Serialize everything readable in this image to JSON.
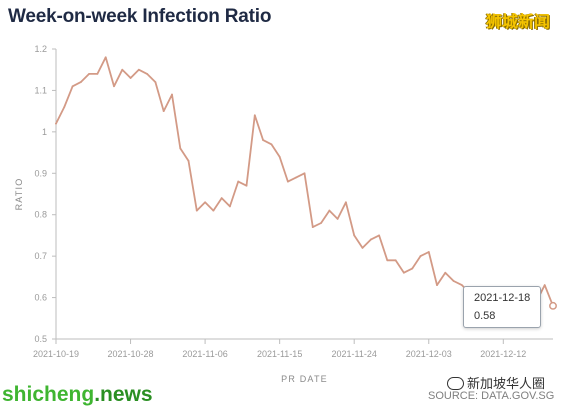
{
  "header": {
    "title": "Week-on-week Infection Ratio"
  },
  "watermarks": {
    "top_right": "狮城新闻",
    "bottom_left_name": "shicheng",
    "bottom_left_tld": ".news",
    "bottom_right": "新加坡华人圈"
  },
  "source": "SOURCE: DATA.GOV.SG",
  "colors": {
    "line": "#d39a86",
    "axis": "#bdbdbd",
    "title": "#1f2a44"
  },
  "tooltip": {
    "date": "2021-12-18",
    "value": "0.58"
  },
  "chart_data": {
    "type": "line",
    "title": "Week-on-week Infection Ratio",
    "xlabel": "PR DATE",
    "ylabel": "RATIO",
    "ylim": [
      0.5,
      1.2
    ],
    "yticks": [
      "0.5",
      "0.6",
      "0.7",
      "0.8",
      "0.9",
      "1",
      "1.1",
      "1.2"
    ],
    "xticks": [
      "2021-10-19",
      "2021-10-28",
      "2021-11-06",
      "2021-11-15",
      "2021-11-24",
      "2021-12-03",
      "2021-12-12"
    ],
    "grid": false,
    "legend": "none",
    "x": [
      "2021-10-19",
      "2021-10-20",
      "2021-10-21",
      "2021-10-22",
      "2021-10-23",
      "2021-10-24",
      "2021-10-25",
      "2021-10-26",
      "2021-10-27",
      "2021-10-28",
      "2021-10-29",
      "2021-10-30",
      "2021-10-31",
      "2021-11-01",
      "2021-11-02",
      "2021-11-03",
      "2021-11-04",
      "2021-11-05",
      "2021-11-06",
      "2021-11-07",
      "2021-11-08",
      "2021-11-09",
      "2021-11-10",
      "2021-11-11",
      "2021-11-12",
      "2021-11-13",
      "2021-11-14",
      "2021-11-15",
      "2021-11-16",
      "2021-11-17",
      "2021-11-18",
      "2021-11-19",
      "2021-11-20",
      "2021-11-21",
      "2021-11-22",
      "2021-11-23",
      "2021-11-24",
      "2021-11-25",
      "2021-11-26",
      "2021-11-27",
      "2021-11-28",
      "2021-11-29",
      "2021-11-30",
      "2021-12-01",
      "2021-12-02",
      "2021-12-03",
      "2021-12-04",
      "2021-12-05",
      "2021-12-06",
      "2021-12-07",
      "2021-12-08",
      "2021-12-09",
      "2021-12-10",
      "2021-12-11",
      "2021-12-12",
      "2021-12-13",
      "2021-12-14",
      "2021-12-15",
      "2021-12-16",
      "2021-12-17",
      "2021-12-18"
    ],
    "series": [
      {
        "values": [
          1.02,
          1.06,
          1.11,
          1.12,
          1.14,
          1.14,
          1.18,
          1.11,
          1.15,
          1.13,
          1.15,
          1.14,
          1.12,
          1.05,
          1.09,
          0.96,
          0.93,
          0.81,
          0.83,
          0.81,
          0.84,
          0.82,
          0.88,
          0.87,
          1.04,
          0.98,
          0.97,
          0.94,
          0.88,
          0.89,
          0.9,
          0.77,
          0.78,
          0.81,
          0.79,
          0.83,
          0.75,
          0.72,
          0.74,
          0.75,
          0.69,
          0.69,
          0.66,
          0.67,
          0.7,
          0.71,
          0.63,
          0.66,
          0.64,
          0.63,
          0.61,
          0.62,
          0.6,
          0.6,
          0.61,
          0.59,
          0.6,
          0.61,
          0.59,
          0.63,
          0.58
        ]
      }
    ]
  }
}
